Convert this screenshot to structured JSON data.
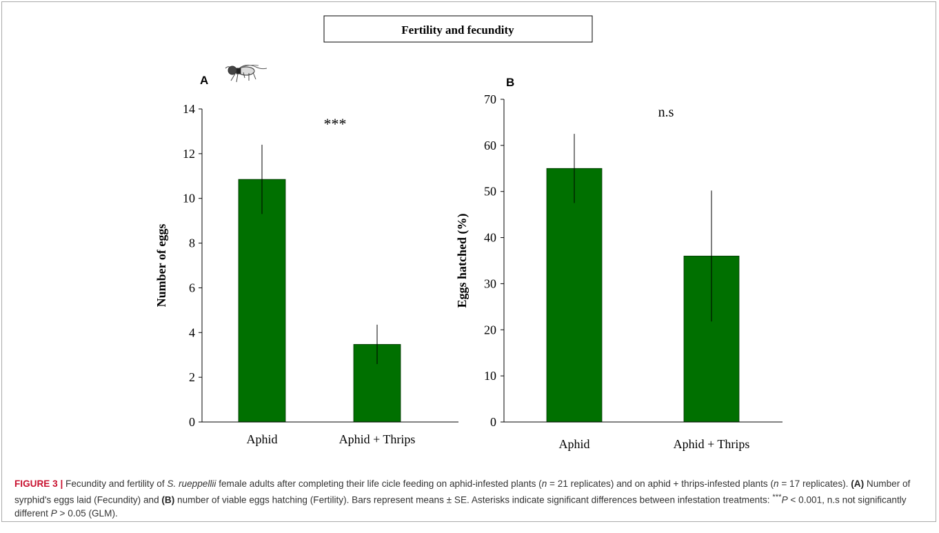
{
  "figure": {
    "banner_title": "Fertility and fecundity",
    "bar_color": "#007000",
    "fly_icon": "hoverfly-icon"
  },
  "chart_data": [
    {
      "type": "bar",
      "panel_label": "A",
      "categories": [
        "Aphid",
        "Aphid + Thrips"
      ],
      "values": [
        10.85,
        3.47
      ],
      "errors": [
        1.55,
        0.88
      ],
      "ylabel": "Number of eggs",
      "xlabel": "",
      "ylim": [
        0,
        14
      ],
      "yticks": [
        0,
        2,
        4,
        6,
        8,
        10,
        12,
        14
      ],
      "annotation": "***",
      "grid": false
    },
    {
      "type": "bar",
      "panel_label": "B",
      "categories": [
        "Aphid",
        "Aphid + Thrips"
      ],
      "values": [
        55.0,
        36.0
      ],
      "errors": [
        7.5,
        14.2
      ],
      "ylabel": "Eggs hatched (%)",
      "xlabel": "",
      "ylim": [
        0,
        70
      ],
      "yticks": [
        0,
        10,
        20,
        30,
        40,
        50,
        60,
        70
      ],
      "annotation": "n.s",
      "grid": false
    }
  ],
  "caption": {
    "label": "FIGURE 3 |",
    "p1": " Fecundity and fertility of ",
    "species": "S. rueppellii",
    "p2": " female adults after completing their life cicle feeding on aphid-infested plants (",
    "n1_var": "n",
    "n1_rest": " = 21 replicates) and on aphid + thrips-infested plants (",
    "n2_var": "n",
    "n2_rest": " = 17 replicates). ",
    "label_a": "(A)",
    "text_a": " Number of syrphid's eggs laid (Fecundity) and ",
    "label_b": "(B)",
    "text_b": " number of viable eggs hatching (Fertility). Bars represent means ± SE. Asterisks indicate significant differences between infestation treatments: ",
    "sig_marker": "***",
    "p_var": "P",
    "p_rest": " < 0.001, n.s not significantly different ",
    "p_var2": "P",
    "p_rest2": " > 0.05 (GLM)."
  }
}
